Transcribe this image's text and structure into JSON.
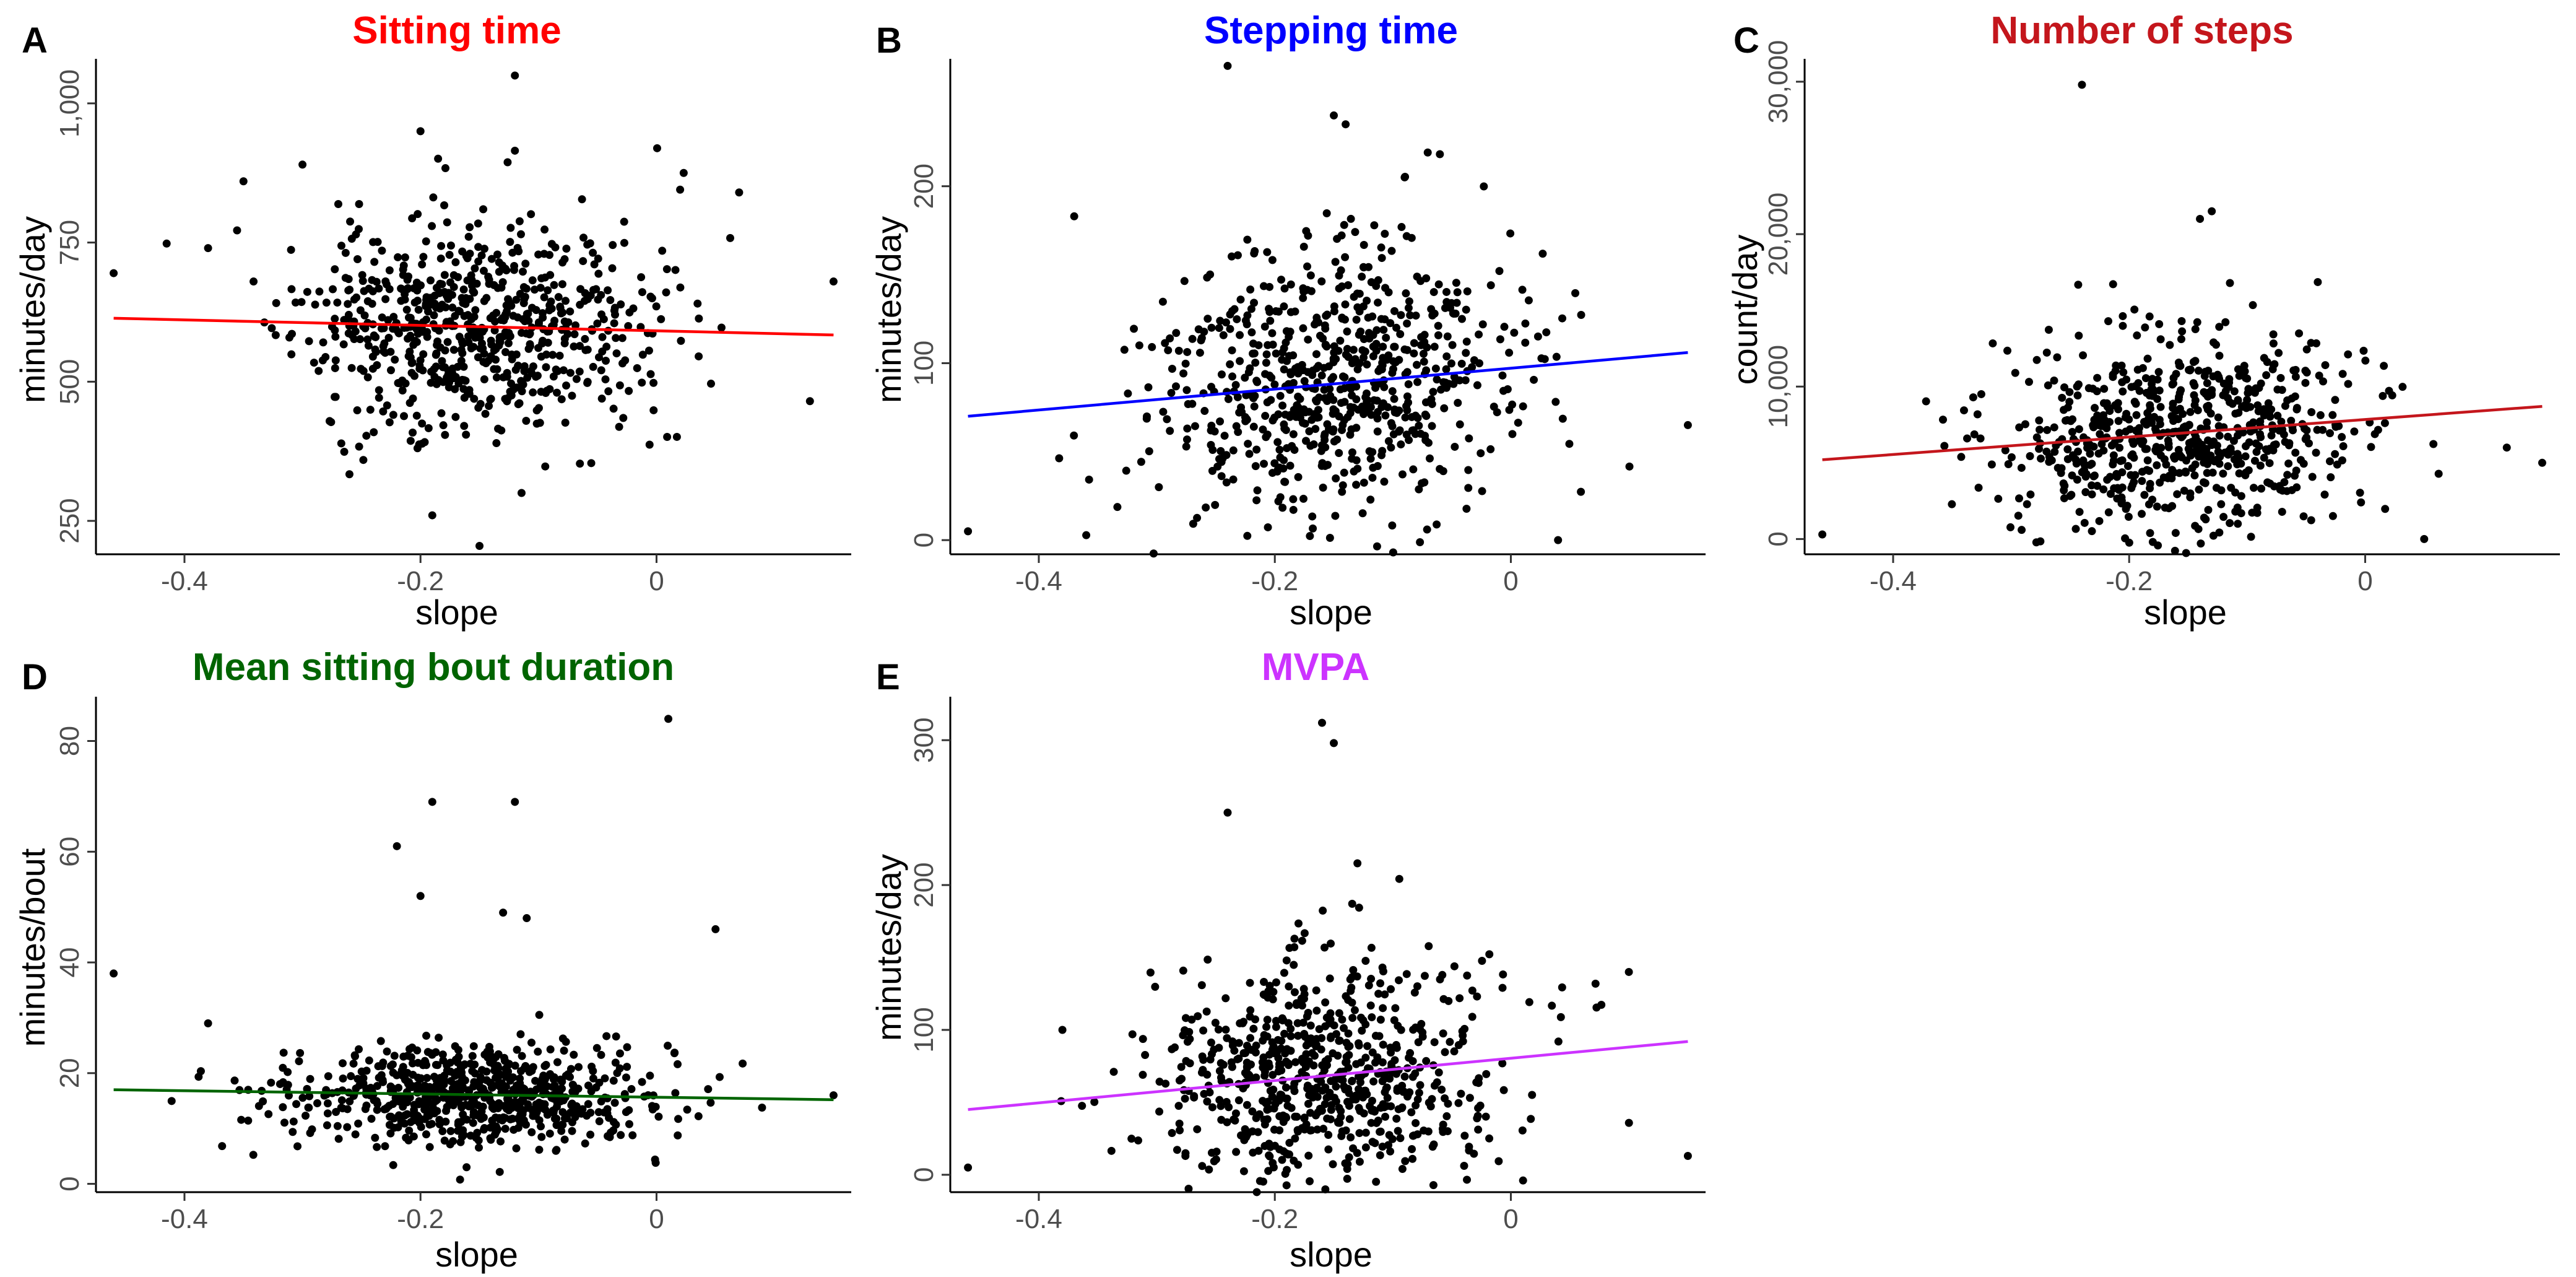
{
  "chart_data": [
    {
      "type": "scatter",
      "letter": "A",
      "title": "Sitting time",
      "title_color": "#ff0000",
      "xlabel": "slope",
      "ylabel": "minutes/day",
      "xlim": [
        -0.475,
        0.165
      ],
      "ylim": [
        190,
        1080
      ],
      "xticks": [
        -0.4,
        -0.2,
        0
      ],
      "xtick_labels": [
        "-0.4",
        "-0.2",
        "0"
      ],
      "yticks": [
        250,
        500,
        750,
        1000
      ],
      "ytick_labels": [
        "250",
        "500",
        "750",
        "1,000"
      ],
      "fit": {
        "x": [
          -0.46,
          0.15
        ],
        "y": [
          614,
          584
        ],
        "color": "#ff0000"
      },
      "gen": {
        "seed": 11,
        "n": 700,
        "xmean": -0.155,
        "xsd": 0.075,
        "ysd": 95
      },
      "points": [
        [
          -0.46,
          695
        ],
        [
          -0.38,
          740
        ],
        [
          -0.35,
          860
        ],
        [
          -0.3,
          890
        ],
        [
          -0.2,
          950
        ],
        [
          -0.12,
          1050
        ],
        [
          -0.12,
          915
        ],
        [
          -0.15,
          205
        ],
        [
          -0.19,
          260
        ],
        [
          0.15,
          680
        ],
        [
          0.13,
          465
        ],
        [
          0.07,
          840
        ],
        [
          0.02,
          845
        ]
      ]
    },
    {
      "type": "scatter",
      "letter": "B",
      "title": "Stepping time",
      "title_color": "#0000ff",
      "xlabel": "slope",
      "ylabel": "minutes/day",
      "xlim": [
        -0.475,
        0.165
      ],
      "ylim": [
        -8,
        272
      ],
      "xticks": [
        -0.4,
        -0.2,
        0
      ],
      "xtick_labels": [
        "-0.4",
        "-0.2",
        "0"
      ],
      "yticks": [
        0,
        100,
        200
      ],
      "ytick_labels": [
        "0",
        "100",
        "200"
      ],
      "fit": {
        "x": [
          -0.46,
          0.15
        ],
        "y": [
          70,
          106
        ],
        "color": "#0000ff"
      },
      "gen": {
        "seed": 23,
        "n": 700,
        "xmean": -0.155,
        "xsd": 0.075,
        "ysd": 38
      },
      "points": [
        [
          -0.46,
          5
        ],
        [
          -0.24,
          268
        ],
        [
          -0.15,
          240
        ],
        [
          -0.14,
          235
        ],
        [
          -0.37,
          183
        ],
        [
          0.15,
          65
        ],
        [
          0.04,
          0
        ],
        [
          -0.09,
          205
        ]
      ]
    },
    {
      "type": "scatter",
      "letter": "C",
      "title": "Number of steps",
      "title_color": "#c4161c",
      "xlabel": "slope",
      "ylabel": "count/day",
      "xlim": [
        -0.475,
        0.165
      ],
      "ylim": [
        -1000,
        31500
      ],
      "xticks": [
        -0.4,
        -0.2,
        0
      ],
      "xtick_labels": [
        "-0.4",
        "-0.2",
        "0"
      ],
      "yticks": [
        0,
        10000,
        20000,
        30000
      ],
      "ytick_labels": [
        "0",
        "10,000",
        "20,000",
        "30,000"
      ],
      "fit": {
        "x": [
          -0.46,
          0.15
        ],
        "y": [
          5200,
          8700
        ],
        "color": "#c4161c"
      },
      "gen": {
        "seed": 37,
        "n": 700,
        "xmean": -0.155,
        "xsd": 0.075,
        "ysd": 3300
      },
      "points": [
        [
          -0.46,
          300
        ],
        [
          -0.24,
          29800
        ],
        [
          -0.13,
          21500
        ],
        [
          -0.14,
          21000
        ],
        [
          0.15,
          5000
        ],
        [
          0.05,
          0
        ],
        [
          0.12,
          6000
        ]
      ]
    },
    {
      "type": "scatter",
      "letter": "D",
      "title": "Mean sitting bout duration",
      "title_color": "#006400",
      "xlabel": "slope",
      "ylabel": "minutes/bout",
      "xlim": [
        -0.475,
        0.165
      ],
      "ylim": [
        -1.5,
        88
      ],
      "xticks": [
        -0.4,
        -0.2,
        0
      ],
      "xtick_labels": [
        "-0.4",
        "-0.2",
        "0"
      ],
      "yticks": [
        0,
        20,
        40,
        60,
        80
      ],
      "ytick_labels": [
        "0",
        "20",
        "40",
        "60",
        "80"
      ],
      "fit": {
        "x": [
          -0.46,
          0.15
        ],
        "y": [
          17,
          15.2
        ],
        "color": "#006400"
      },
      "gen": {
        "seed": 53,
        "n": 700,
        "xmean": -0.155,
        "xsd": 0.075,
        "ysd": 4.5
      },
      "points": [
        [
          -0.46,
          38
        ],
        [
          -0.19,
          69
        ],
        [
          -0.12,
          69
        ],
        [
          0.01,
          84
        ],
        [
          -0.22,
          61
        ],
        [
          -0.2,
          52
        ],
        [
          -0.13,
          49
        ],
        [
          -0.11,
          48
        ],
        [
          0.05,
          46
        ],
        [
          -0.38,
          29
        ],
        [
          0.15,
          16
        ]
      ]
    },
    {
      "type": "scatter",
      "letter": "E",
      "title": "MVPA",
      "title_color": "#cc33ff",
      "xlabel": "slope",
      "ylabel": "minutes/day",
      "xlim": [
        -0.475,
        0.165
      ],
      "ylim": [
        -12,
        330
      ],
      "xticks": [
        -0.4,
        -0.2,
        0
      ],
      "xtick_labels": [
        "-0.4",
        "-0.2",
        "0"
      ],
      "yticks": [
        0,
        100,
        200,
        300
      ],
      "ytick_labels": [
        "0",
        "100",
        "200",
        "300"
      ],
      "fit": {
        "x": [
          -0.46,
          0.15
        ],
        "y": [
          45,
          92
        ],
        "color": "#cc33ff"
      },
      "gen": {
        "seed": 71,
        "n": 700,
        "xmean": -0.155,
        "xsd": 0.075,
        "ysd": 40
      },
      "points": [
        [
          -0.46,
          5
        ],
        [
          -0.16,
          312
        ],
        [
          -0.15,
          298
        ],
        [
          -0.24,
          250
        ],
        [
          -0.38,
          100
        ],
        [
          0.15,
          13
        ],
        [
          0.1,
          140
        ],
        [
          -0.13,
          215
        ]
      ]
    }
  ]
}
